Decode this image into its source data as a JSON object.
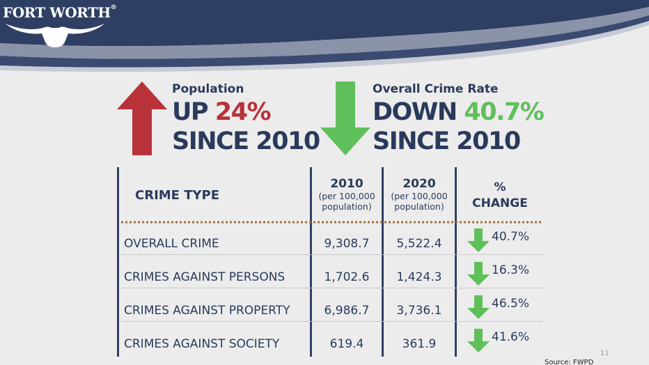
{
  "header": {
    "logo_text": "FORT WORTH",
    "logo_reg": "®"
  },
  "population": {
    "label": "Population",
    "direction": "UP",
    "percent": "24%",
    "since": "SINCE 2010",
    "arrow_color": "#b8323a"
  },
  "crime_rate": {
    "label": "Overall Crime Rate",
    "direction": "DOWN",
    "percent": "40.7%",
    "since": "SINCE 2010",
    "arrow_color": "#5fbf5a"
  },
  "table": {
    "headers": {
      "type": "CRIME TYPE",
      "y2010": "2010",
      "y2010_sub1": "(per 100,000",
      "y2010_sub2": "population)",
      "y2020": "2020",
      "y2020_sub1": "(per 100,000",
      "y2020_sub2": "population)",
      "change1": "%",
      "change2": "CHANGE"
    },
    "rows": [
      {
        "type": "OVERALL CRIME",
        "v2010": "9,308.7",
        "v2020": "5,522.4",
        "change": "40.7%"
      },
      {
        "type": "CRIMES AGAINST PERSONS",
        "v2010": "1,702.6",
        "v2020": "1,424.3",
        "change": "16.3%"
      },
      {
        "type": "CRIMES AGAINST PROPERTY",
        "v2010": "6,986.7",
        "v2020": "3,736.1",
        "change": "46.5%"
      },
      {
        "type": "CRIMES AGAINST SOCIETY",
        "v2010": "619.4",
        "v2020": "361.9",
        "change": "41.6%"
      }
    ]
  },
  "footer": {
    "page_number": "11",
    "source": "Source: FWPD"
  },
  "colors": {
    "navy": "#2f3f63",
    "red": "#b8323a",
    "green": "#5fbf5a",
    "background": "#ececec"
  }
}
